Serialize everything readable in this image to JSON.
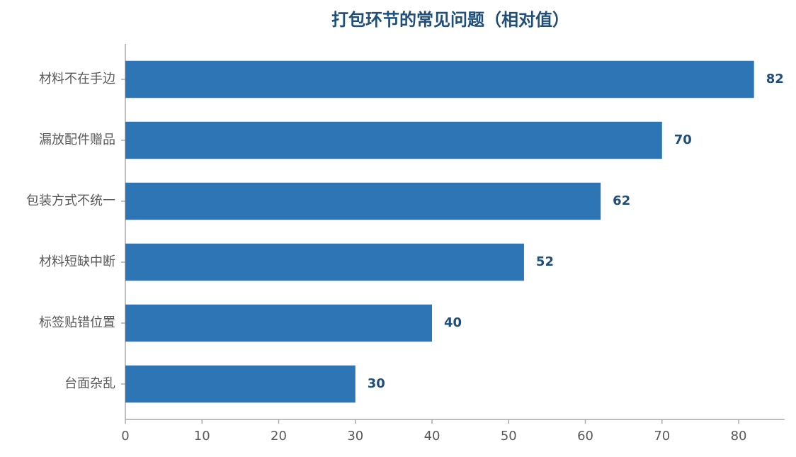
{
  "chart_data": {
    "type": "bar",
    "orientation": "horizontal",
    "title": "打包环节的常见问题（相对值）",
    "categories": [
      "材料不在手边",
      "漏放配件赠品",
      "包装方式不统一",
      "材料短缺中断",
      "标签贴错位置",
      "台面杂乱"
    ],
    "values": [
      82,
      70,
      62,
      52,
      40,
      30
    ],
    "color": "#2e75b6",
    "xlim": [
      0,
      86
    ],
    "xticks": [
      0,
      10,
      20,
      30,
      40,
      50,
      60,
      70,
      80
    ],
    "grid": false
  }
}
